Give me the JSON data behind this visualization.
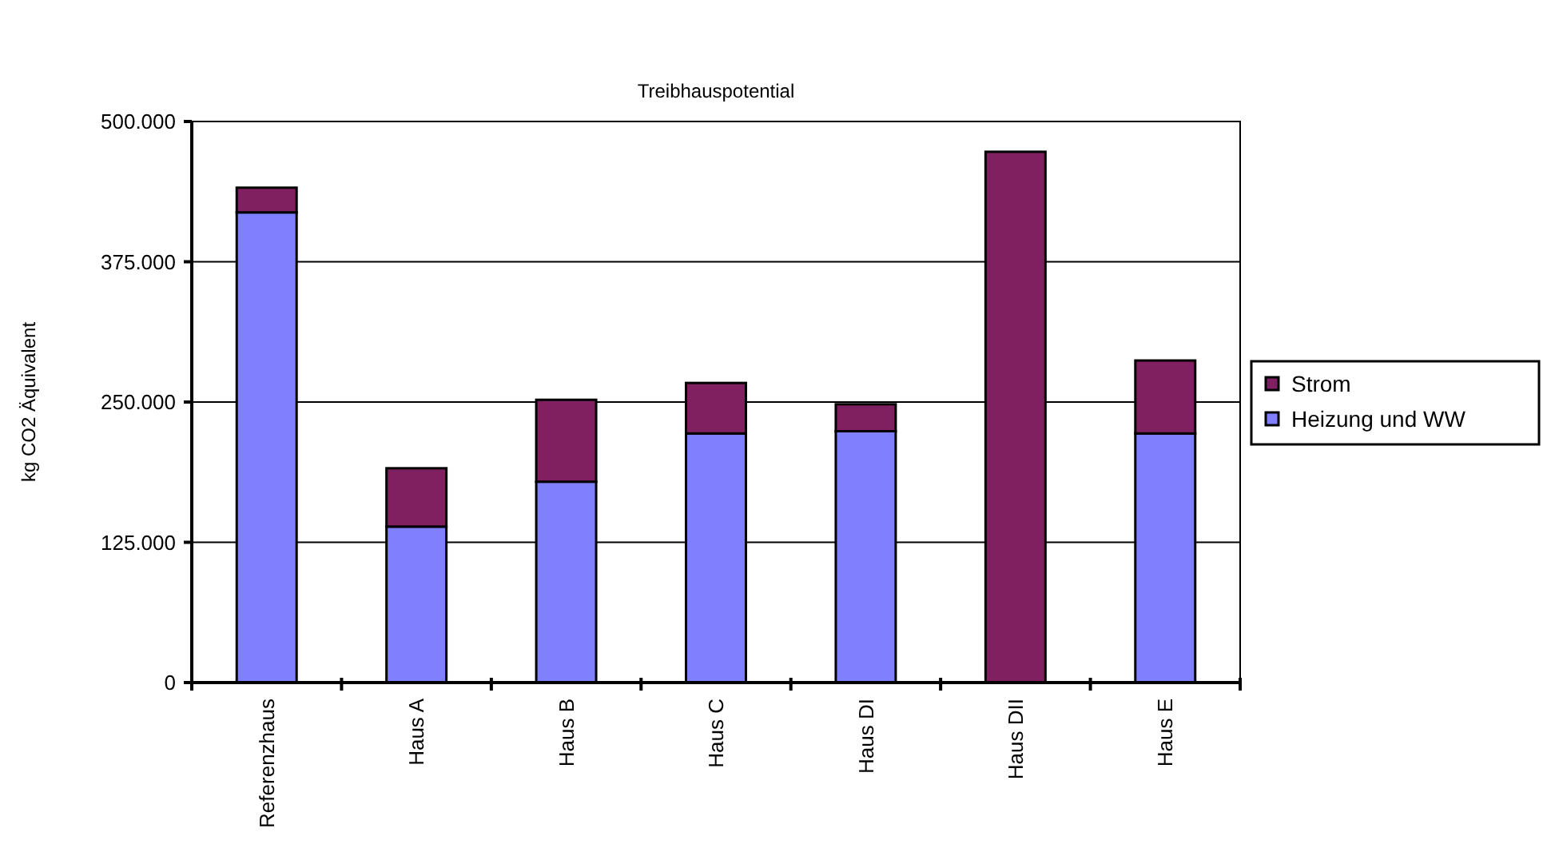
{
  "chart_data": {
    "type": "bar",
    "title": "Treibhauspotential",
    "ylabel": "kg CO2 Äquivalent",
    "categories": [
      "Referenzhaus",
      "Haus A",
      "Haus B",
      "Haus C",
      "Haus DI",
      "Haus DII",
      "Haus E"
    ],
    "stacked": true,
    "series": [
      {
        "name": "Heizung und WW",
        "color": "#8080ff",
        "values": [
          419000,
          139000,
          179000,
          222000,
          224000,
          0,
          222000
        ]
      },
      {
        "name": "Strom",
        "color": "#802060",
        "values": [
          22000,
          52000,
          73000,
          45000,
          24000,
          473000,
          65000
        ]
      }
    ],
    "ylim": [
      0,
      500000
    ],
    "yticks": [
      0,
      {
        "value": 125000,
        "label": "125.000"
      },
      {
        "value": 250000,
        "label": "250.000"
      },
      {
        "value": 375000,
        "label": "375.000"
      },
      {
        "value": 500000,
        "label": "500.000"
      }
    ],
    "grid": "y",
    "legend": "right"
  }
}
